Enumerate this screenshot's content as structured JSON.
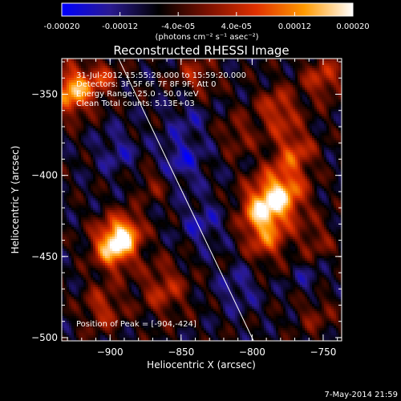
{
  "colorbar": {
    "ticks": [
      {
        "value": -0.0002,
        "label": "-0.00020"
      },
      {
        "value": -0.00012,
        "label": "-0.00012"
      },
      {
        "value": -4e-05,
        "label": "-4.0e-05"
      },
      {
        "value": 4e-05,
        "label": "4.0e-05"
      },
      {
        "value": 0.00012,
        "label": "0.00012"
      },
      {
        "value": 0.0002,
        "label": "0.00020"
      }
    ],
    "range": [
      -0.0002,
      0.0002
    ],
    "unit_label": "(photons cm⁻² s⁻¹ asec⁻²)",
    "colors": [
      "#0000ff",
      "#2a1a90",
      "#000000",
      "#7a1000",
      "#e03000",
      "#ff9a00",
      "#ffffff"
    ]
  },
  "chart_data": {
    "type": "heatmap",
    "title": "Reconstructed RHESSI Image",
    "xlabel": "Heliocentric X (arcsec)",
    "ylabel": "Heliocentric Y (arcsec)",
    "xlim": [
      -934,
      -737
    ],
    "ylim": [
      -502,
      -328
    ],
    "x_ticks": [
      {
        "value": -900,
        "label": "−900"
      },
      {
        "value": -850,
        "label": "−850"
      },
      {
        "value": -800,
        "label": "−800"
      },
      {
        "value": -750,
        "label": "−750"
      }
    ],
    "y_ticks": [
      {
        "value": -350,
        "label": "−350"
      },
      {
        "value": -400,
        "label": "−400"
      },
      {
        "value": -450,
        "label": "−450"
      },
      {
        "value": -500,
        "label": "−500"
      }
    ],
    "limb_line": [
      [
        -894,
        -328
      ],
      [
        -799,
        -502
      ]
    ],
    "peak": [
      -904,
      -424
    ],
    "annotations": {
      "time": "31-Jul-2012 15:55:28.000 to 15:59:20.000",
      "detectors": "Detectors: 3F 5F 6F 7F 8F 9F; Att 0",
      "energy": "Energy Range: 25.0 - 50.0 keV",
      "method": "Clean   Total counts: 5.13E+03",
      "peak": "Position of Peak = [-904,-424]"
    },
    "blobs": [
      {
        "x": -897,
        "y": -443,
        "amp": 0.00026,
        "s": 10
      },
      {
        "x": -887,
        "y": -434,
        "amp": 0.00012,
        "s": 8
      },
      {
        "x": -780,
        "y": -412,
        "amp": 0.00022,
        "s": 12
      },
      {
        "x": -795,
        "y": -422,
        "amp": 0.00016,
        "s": 10
      },
      {
        "x": -790,
        "y": -440,
        "amp": 0.00012,
        "s": 10
      },
      {
        "x": -770,
        "y": -385,
        "amp": 0.00012,
        "s": 10
      },
      {
        "x": -782,
        "y": -360,
        "amp": 0.00012,
        "s": 10
      },
      {
        "x": -750,
        "y": -340,
        "amp": 0.00011,
        "s": 10
      },
      {
        "x": -926,
        "y": -348,
        "amp": 0.00022,
        "s": 10
      },
      {
        "x": -905,
        "y": -340,
        "amp": 0.0001,
        "s": 8
      },
      {
        "x": -862,
        "y": -470,
        "amp": 0.0001,
        "s": 12
      },
      {
        "x": -905,
        "y": -482,
        "amp": 0.0001,
        "s": 10
      },
      {
        "x": -840,
        "y": -340,
        "amp": 9e-05,
        "s": 10
      },
      {
        "x": -870,
        "y": -405,
        "amp": 7e-05,
        "s": 8
      },
      {
        "x": -810,
        "y": -375,
        "amp": 7e-05,
        "s": 9
      },
      {
        "x": -755,
        "y": -440,
        "amp": 7e-05,
        "s": 9
      },
      {
        "x": -755,
        "y": -485,
        "amp": 6e-05,
        "s": 10
      },
      {
        "x": -850,
        "y": -390,
        "amp": -8e-05,
        "s": 12
      },
      {
        "x": -895,
        "y": -385,
        "amp": -6e-05,
        "s": 10
      },
      {
        "x": -835,
        "y": -430,
        "amp": -7e-05,
        "s": 10
      },
      {
        "x": -810,
        "y": -470,
        "amp": -6e-05,
        "s": 10
      },
      {
        "x": -760,
        "y": -465,
        "amp": -5e-05,
        "s": 8
      },
      {
        "x": -845,
        "y": -360,
        "amp": -5e-05,
        "s": 10
      }
    ]
  },
  "footer": {
    "timestamp": "7-May-2014 21:59"
  }
}
